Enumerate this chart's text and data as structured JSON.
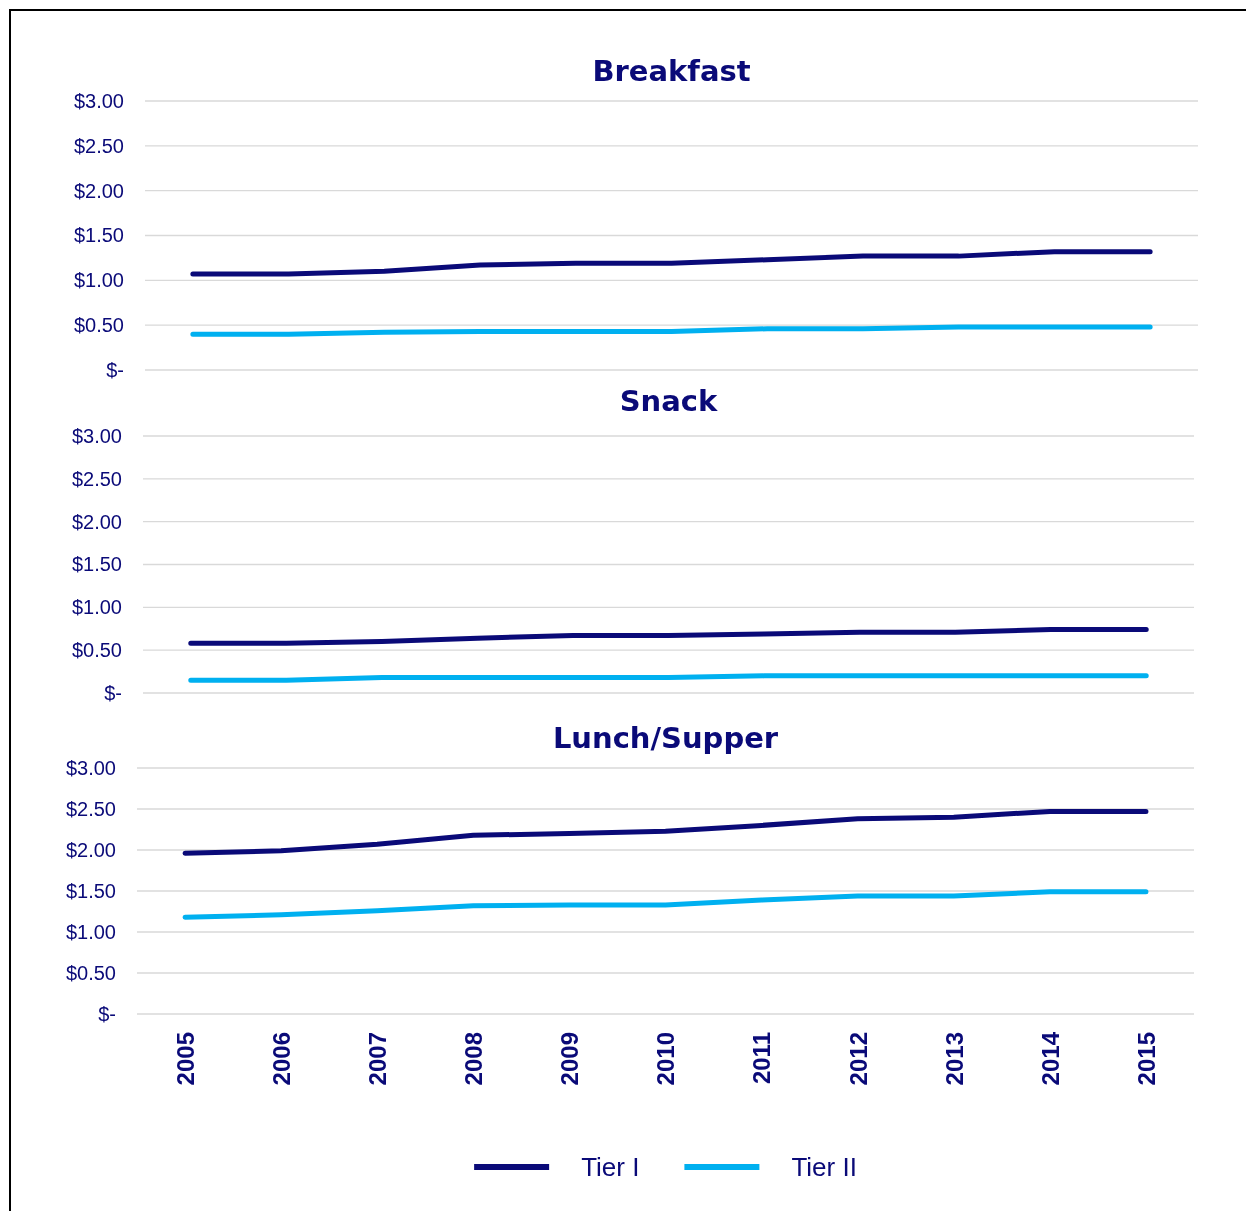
{
  "chart_data": [
    {
      "type": "line",
      "title": "Breakfast",
      "categories": [
        null,
        null,
        null,
        null,
        null,
        null,
        null,
        null,
        null,
        null,
        null
      ],
      "series": [
        {
          "color": "#0a0a78",
          "values": [
            1.07,
            1.07,
            1.1,
            1.17,
            1.19,
            1.19,
            1.23,
            1.27,
            1.27,
            1.32,
            1.32
          ]
        },
        {
          "color": "#00b0f0",
          "values": [
            0.4,
            0.4,
            0.42,
            0.43,
            0.43,
            0.43,
            0.46,
            0.46,
            0.48,
            0.48,
            0.48
          ]
        }
      ],
      "ylim": [
        0,
        3
      ],
      "yticks": [
        {
          "value": 0,
          "label": "$-"
        },
        {
          "value": 0.5,
          "label": "$0.50"
        },
        {
          "value": 1,
          "label": "$1.00"
        },
        {
          "value": 1.5,
          "label": "$1.50"
        },
        {
          "value": 2,
          "label": "$2.00"
        },
        {
          "value": 2.5,
          "label": "$2.50"
        },
        {
          "value": 3,
          "label": "$3.00"
        }
      ],
      "grid": "y",
      "tick_labels": "y",
      "legend": false,
      "marker": "none",
      "line_style": "solid"
    },
    {
      "type": "line",
      "title": "Snack",
      "categories": [
        null,
        null,
        null,
        null,
        null,
        null,
        null,
        null,
        null,
        null,
        null
      ],
      "series": [
        {
          "color": "#0a0a78",
          "values": [
            0.58,
            0.58,
            0.6,
            0.64,
            0.67,
            0.67,
            0.69,
            0.71,
            0.71,
            0.74,
            0.74
          ]
        },
        {
          "color": "#00b0f0",
          "values": [
            0.15,
            0.15,
            0.18,
            0.18,
            0.18,
            0.18,
            0.2,
            0.2,
            0.2,
            0.2,
            0.2
          ]
        }
      ],
      "ylim": [
        0,
        3
      ],
      "yticks": [
        {
          "value": 0,
          "label": "$-"
        },
        {
          "value": 0.5,
          "label": "$0.50"
        },
        {
          "value": 1,
          "label": "$1.00"
        },
        {
          "value": 1.5,
          "label": "$1.50"
        },
        {
          "value": 2,
          "label": "$2.00"
        },
        {
          "value": 2.5,
          "label": "$2.50"
        },
        {
          "value": 3,
          "label": "$3.00"
        }
      ],
      "grid": "y",
      "tick_labels": "y",
      "legend": false,
      "marker": "none",
      "line_style": "solid"
    },
    {
      "type": "line",
      "title": "Lunch/Supper",
      "categories": [
        "2005",
        "2006",
        "2007",
        "2008",
        "2009",
        "2010",
        "2011",
        "2012",
        "2013",
        "2014",
        "2015"
      ],
      "series": [
        {
          "name": "Tier I",
          "color": "#0a0a78",
          "values": [
            1.96,
            1.99,
            2.07,
            2.18,
            2.2,
            2.23,
            2.3,
            2.38,
            2.4,
            2.47,
            2.47
          ]
        },
        {
          "name": "Tier II",
          "color": "#00b0f0",
          "values": [
            1.18,
            1.21,
            1.26,
            1.32,
            1.33,
            1.33,
            1.39,
            1.44,
            1.44,
            1.49,
            1.49
          ]
        }
      ],
      "ylim": [
        0,
        3
      ],
      "yticks": [
        {
          "value": 0,
          "label": "$-"
        },
        {
          "value": 0.5,
          "label": "$0.50"
        },
        {
          "value": 1,
          "label": "$1.00"
        },
        {
          "value": 1.5,
          "label": "$1.50"
        },
        {
          "value": 2,
          "label": "$2.00"
        },
        {
          "value": 2.5,
          "label": "$2.50"
        },
        {
          "value": 3,
          "label": "$3.00"
        }
      ],
      "grid": "y",
      "legend": "bottom",
      "marker": "none",
      "line_style": "solid"
    }
  ]
}
